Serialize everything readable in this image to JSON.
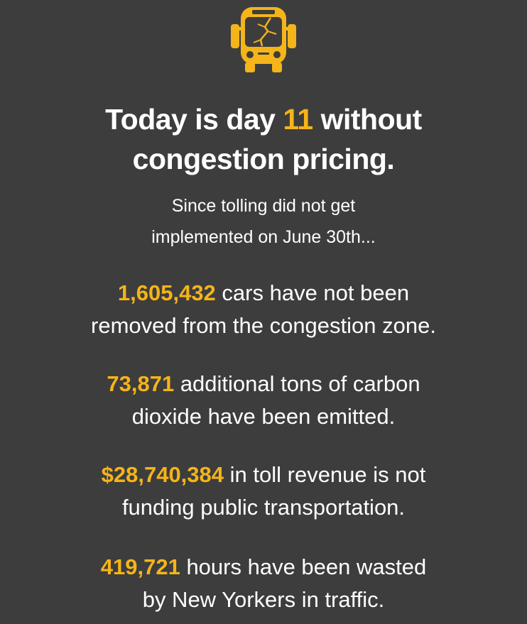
{
  "colors": {
    "background": "#3d3d3d",
    "accent": "#f5b418",
    "text": "#ffffff"
  },
  "icon": "broken-bus-icon",
  "headline": {
    "prefix": "Today is day ",
    "day_number": "11",
    "suffix": " without",
    "line2": "congestion pricing."
  },
  "subhead": {
    "line1": "Since tolling did not get",
    "line2": "implemented on June 30th..."
  },
  "stats": [
    {
      "value": "1,605,432",
      "text1": " cars have not been",
      "text2": "removed from the congestion zone."
    },
    {
      "value": "73,871",
      "text1": " additional tons of carbon",
      "text2": "dioxide have been emitted."
    },
    {
      "value": "$28,740,384",
      "text1": " in toll revenue is not",
      "text2": "funding public transportation."
    },
    {
      "value": "419,721",
      "text1": " hours have been wasted",
      "text2": "by New Yorkers in traffic."
    }
  ]
}
